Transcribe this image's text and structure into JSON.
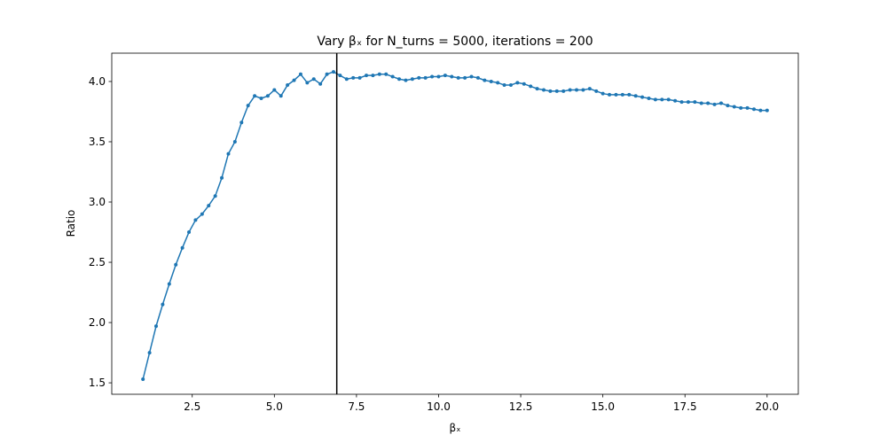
{
  "chart_data": {
    "type": "line",
    "title": "Vary βₓ for N_turns = 5000, iterations = 200",
    "xlabel": "βₓ",
    "ylabel": "Ratio",
    "color": "#1f77b4",
    "x": [
      1.0,
      1.2,
      1.4,
      1.6,
      1.8,
      2.0,
      2.2,
      2.4,
      2.6,
      2.8,
      3.0,
      3.2,
      3.4,
      3.6,
      3.8,
      4.0,
      4.2,
      4.4,
      4.6,
      4.8,
      5.0,
      5.2,
      5.4,
      5.6,
      5.8,
      6.0,
      6.2,
      6.4,
      6.6,
      6.8,
      7.0,
      7.2,
      7.4,
      7.6,
      7.8,
      8.0,
      8.2,
      8.4,
      8.6,
      8.8,
      9.0,
      9.2,
      9.4,
      9.6,
      9.8,
      10.0,
      10.2,
      10.4,
      10.6,
      10.8,
      11.0,
      11.2,
      11.4,
      11.6,
      11.8,
      12.0,
      12.2,
      12.4,
      12.6,
      12.8,
      13.0,
      13.2,
      13.4,
      13.6,
      13.8,
      14.0,
      14.2,
      14.4,
      14.6,
      14.8,
      15.0,
      15.2,
      15.4,
      15.6,
      15.8,
      16.0,
      16.2,
      16.4,
      16.6,
      16.8,
      17.0,
      17.2,
      17.4,
      17.6,
      17.8,
      18.0,
      18.2,
      18.4,
      18.6,
      18.8,
      19.0,
      19.2,
      19.4,
      19.6,
      19.8,
      20.0
    ],
    "values": [
      1.53,
      1.75,
      1.97,
      2.15,
      2.32,
      2.48,
      2.62,
      2.75,
      2.85,
      2.9,
      2.97,
      3.05,
      3.2,
      3.4,
      3.5,
      3.66,
      3.8,
      3.88,
      3.86,
      3.88,
      3.93,
      3.88,
      3.97,
      4.01,
      4.06,
      3.99,
      4.02,
      3.98,
      4.06,
      4.08,
      4.05,
      4.02,
      4.03,
      4.03,
      4.05,
      4.05,
      4.06,
      4.06,
      4.04,
      4.02,
      4.01,
      4.02,
      4.03,
      4.03,
      4.04,
      4.04,
      4.05,
      4.04,
      4.03,
      4.03,
      4.04,
      4.03,
      4.01,
      4.0,
      3.99,
      3.97,
      3.97,
      3.99,
      3.98,
      3.96,
      3.94,
      3.93,
      3.92,
      3.92,
      3.92,
      3.93,
      3.93,
      3.93,
      3.94,
      3.92,
      3.9,
      3.89,
      3.89,
      3.89,
      3.89,
      3.88,
      3.87,
      3.86,
      3.85,
      3.85,
      3.85,
      3.84,
      3.83,
      3.83,
      3.83,
      3.82,
      3.82,
      3.81,
      3.82,
      3.8,
      3.79,
      3.78,
      3.78,
      3.77,
      3.76,
      3.76
    ],
    "vline": 6.9,
    "vline_color": "#000000",
    "xlim": [
      0.05,
      20.95
    ],
    "ylim": [
      1.405,
      4.235
    ],
    "xticks": [
      2.5,
      {
        "value": 5,
        "label": "5.0"
      },
      7.5,
      {
        "value": 10,
        "label": "10.0"
      },
      12.5,
      {
        "value": 15,
        "label": "15.0"
      },
      17.5,
      {
        "value": 20,
        "label": "20.0"
      }
    ],
    "yticks": [
      1.5,
      {
        "value": 2,
        "label": "2.0"
      },
      2.5,
      {
        "value": 3,
        "label": "3.0"
      },
      3.5,
      {
        "value": 4,
        "label": "4.0"
      }
    ],
    "grid": false
  }
}
